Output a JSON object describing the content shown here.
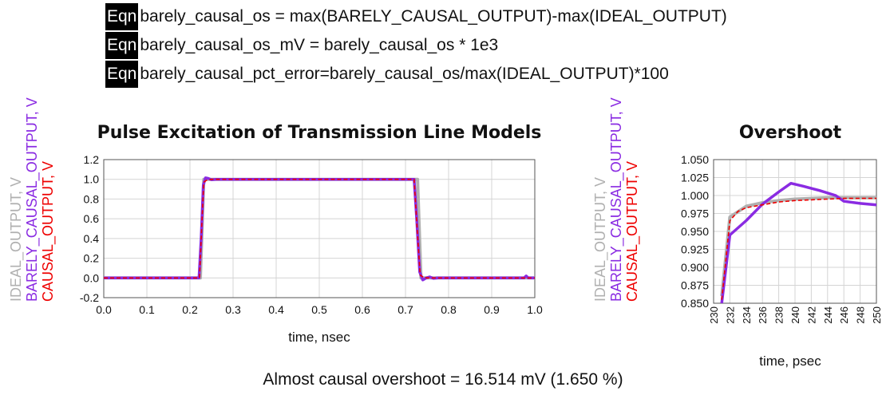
{
  "equations": [
    {
      "tag": "Eqn",
      "text": "barely_causal_os = max(BARELY_CAUSAL_OUTPUT)-max(IDEAL_OUTPUT)"
    },
    {
      "tag": "Eqn",
      "text": "barely_causal_os_mV = barely_causal_os * 1e3"
    },
    {
      "tag": "Eqn",
      "text": "barely_causal_pct_error=barely_causal_os/max(IDEAL_OUTPUT)*100"
    }
  ],
  "footer": "Almost causal overshoot = 16.514 mV (1.650 %)",
  "colors": {
    "ideal": "#b0b0b0",
    "barely": "#8a2be2",
    "causal": "#ee0000"
  },
  "chart_data": [
    {
      "type": "line",
      "title": "Pulse Excitation of Transmission Line Models",
      "xlabel": "time, nsec",
      "ylabels": [
        "IDEAL_OUTPUT, V",
        "BARELY_CAUSAL_OUTPUT, V",
        "CAUSAL_OUTPUT, V"
      ],
      "xlim": [
        0.0,
        1.0
      ],
      "ylim": [
        -0.2,
        1.2
      ],
      "xticks": [
        "0.0",
        "0.1",
        "0.2",
        "0.3",
        "0.4",
        "0.5",
        "0.6",
        "0.7",
        "0.8",
        "0.9",
        "1.0"
      ],
      "yticks": [
        "-0.2",
        "0.0",
        "0.2",
        "0.4",
        "0.6",
        "0.8",
        "1.0",
        "1.2"
      ],
      "grid": true,
      "series": [
        {
          "name": "IDEAL_OUTPUT",
          "color": "#b0b0b0",
          "x": [
            0.0,
            0.224,
            0.232,
            0.728,
            0.736,
            1.0
          ],
          "y": [
            0.0,
            0.0,
            1.0,
            1.0,
            0.0,
            0.0
          ]
        },
        {
          "name": "BARELY_CAUSAL_OUTPUT",
          "color": "#8a2be2",
          "x": [
            0.0,
            0.221,
            0.226,
            0.231,
            0.236,
            0.242,
            0.25,
            0.26,
            0.72,
            0.726,
            0.733,
            0.74,
            0.748,
            0.756,
            0.765,
            0.775,
            0.975,
            0.98,
            0.985,
            1.0
          ],
          "y": [
            0.0,
            0.0,
            0.4,
            0.94,
            1.015,
            1.01,
            0.995,
            1.0,
            1.0,
            0.6,
            0.06,
            -0.02,
            0.0,
            0.01,
            -0.005,
            0.0,
            0.0,
            0.02,
            0.0,
            0.0
          ]
        },
        {
          "name": "CAUSAL_OUTPUT",
          "color": "#ee0000",
          "x": [
            0.0,
            0.222,
            0.227,
            0.232,
            0.238,
            0.25,
            0.72,
            0.727,
            0.734,
            0.742,
            0.752,
            1.0
          ],
          "y": [
            0.0,
            0.0,
            0.5,
            0.97,
            0.99,
            1.0,
            1.0,
            0.5,
            0.03,
            0.005,
            0.0,
            0.0
          ]
        }
      ]
    },
    {
      "type": "line",
      "title": "Overshoot",
      "xlabel": "time, psec",
      "ylabels": [
        "IDEAL_OUTPUT, V",
        "BARELY_CAUSAL_OUTPUT, V",
        "CAUSAL_OUTPUT, V"
      ],
      "xlim": [
        230,
        250
      ],
      "ylim": [
        0.85,
        1.05
      ],
      "xticks": [
        "230",
        "232",
        "234",
        "236",
        "238",
        "240",
        "242",
        "244",
        "246",
        "248",
        "250"
      ],
      "yticks": [
        "0.850",
        "0.875",
        "0.900",
        "0.925",
        "0.950",
        "0.975",
        "1.000",
        "1.025",
        "1.050"
      ],
      "grid": true,
      "series": [
        {
          "name": "IDEAL_OUTPUT",
          "color": "#b0b0b0",
          "x": [
            231.0,
            232.0,
            234.0,
            236.0,
            238.0,
            240.0,
            242.0,
            244.0,
            246.0,
            248.0,
            250.0
          ],
          "y": [
            0.86,
            0.97,
            0.985,
            0.99,
            0.993,
            0.995,
            0.996,
            0.997,
            0.997,
            0.997,
            0.997
          ]
        },
        {
          "name": "BARELY_CAUSAL_OUTPUT",
          "color": "#8a2be2",
          "x": [
            231.0,
            232.0,
            234.0,
            236.0,
            238.0,
            239.5,
            241.0,
            243.0,
            245.0,
            246.0,
            248.0,
            250.0
          ],
          "y": [
            0.85,
            0.945,
            0.965,
            0.988,
            1.005,
            1.017,
            1.013,
            1.007,
            1.0,
            0.992,
            0.989,
            0.987
          ]
        },
        {
          "name": "CAUSAL_OUTPUT",
          "color": "#ee0000",
          "x": [
            231.0,
            232.0,
            233.0,
            234.0,
            236.0,
            238.0,
            240.0,
            242.0,
            244.0,
            246.0,
            248.0,
            250.0
          ],
          "y": [
            0.855,
            0.965,
            0.978,
            0.983,
            0.987,
            0.991,
            0.993,
            0.994,
            0.995,
            0.996,
            0.996,
            0.996
          ]
        }
      ]
    }
  ]
}
